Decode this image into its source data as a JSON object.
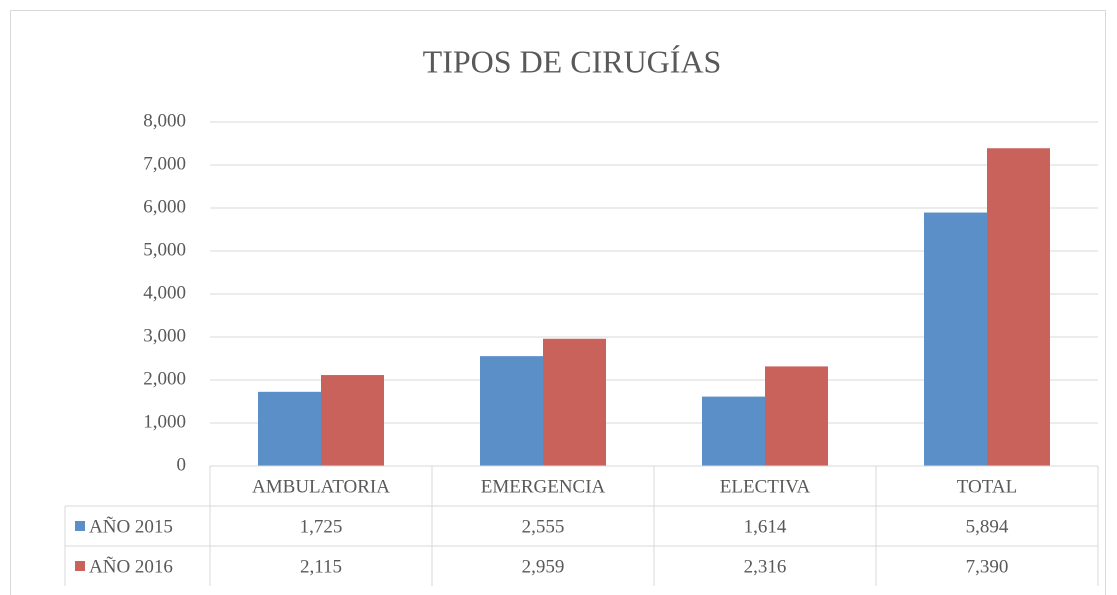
{
  "chart_data": {
    "type": "bar",
    "title": "TIPOS DE CIRUGÍAS",
    "categories": [
      "AMBULATORIA",
      "EMERGENCIA",
      "ELECTIVA",
      "TOTAL"
    ],
    "series": [
      {
        "name": "AÑO 2015",
        "color": "#5b8fc7",
        "values": [
          1725,
          2555,
          1614,
          5894
        ],
        "value_labels": [
          "1,725",
          "2,555",
          "1,614",
          "5,894"
        ]
      },
      {
        "name": "AÑO 2016",
        "color": "#c9625a",
        "values": [
          2115,
          2959,
          2316,
          7390
        ],
        "value_labels": [
          "2,115",
          "2,959",
          "2,316",
          "7,390"
        ]
      }
    ],
    "ylim": [
      0,
      8000
    ],
    "yticks": [
      0,
      {
        "value": 1000,
        "label": "1,000"
      },
      {
        "value": 2000,
        "label": "2,000"
      },
      {
        "value": 3000,
        "label": "3,000"
      },
      {
        "value": 4000,
        "label": "4,000"
      },
      {
        "value": 5000,
        "label": "5,000"
      },
      {
        "value": 6000,
        "label": "6,000"
      },
      {
        "value": 7000,
        "label": "7,000"
      },
      {
        "value": 8000,
        "label": "8,000"
      }
    ],
    "grid": true,
    "legend": "table"
  }
}
